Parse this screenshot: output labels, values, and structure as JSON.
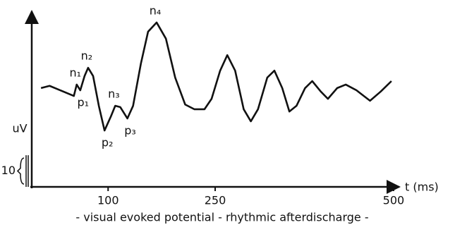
{
  "chart_data": {
    "type": "line",
    "x_label": "t (ms)",
    "y_label": "uV",
    "caption": "- visual evoked potential - rhythmic afterdischarge -",
    "scale_bar": 10,
    "xlim": [
      -7,
      507
    ],
    "xticks": [
      100,
      250,
      500
    ],
    "ylim": [
      0,
      55
    ],
    "series": [
      {
        "name": null,
        "color": "#111111",
        "x": [
          6,
          18,
          33,
          52,
          56,
          61,
          67,
          72,
          79,
          87,
          95,
          104,
          110,
          117,
          127,
          135,
          146,
          156,
          168,
          181,
          194,
          208,
          221,
          235,
          245,
          257,
          267,
          278,
          290,
          300,
          310,
          323,
          333,
          344,
          354,
          364,
          376,
          386,
          398,
          408,
          421,
          433,
          448,
          467,
          482,
          497
        ],
        "values": [
          31.2,
          31.9,
          30.5,
          28.7,
          32.3,
          30.5,
          35,
          37.6,
          35,
          25.6,
          17.8,
          22.3,
          25.6,
          25.2,
          21.6,
          25.6,
          39,
          49,
          51.9,
          46.8,
          34.5,
          26,
          24.5,
          24.5,
          27.8,
          36.7,
          41.6,
          36.7,
          24.5,
          20.7,
          24.5,
          34.5,
          36.7,
          31.2,
          23.8,
          25.6,
          31.2,
          33.4,
          30.1,
          27.8,
          31.2,
          32.3,
          30.5,
          27.2,
          30.1,
          33.4
        ],
        "point_labels": [
          null,
          null,
          null,
          null,
          "n₁",
          "p₁",
          null,
          "n₂",
          null,
          null,
          "p₂",
          null,
          "n₃",
          null,
          "p₃",
          null,
          null,
          null,
          "n₄",
          null,
          null,
          null,
          null,
          null,
          null,
          null,
          null,
          null,
          null,
          null,
          null,
          null,
          null,
          null,
          null,
          null,
          null,
          null,
          null,
          null,
          null,
          null,
          null,
          null,
          null,
          null
        ]
      }
    ]
  }
}
